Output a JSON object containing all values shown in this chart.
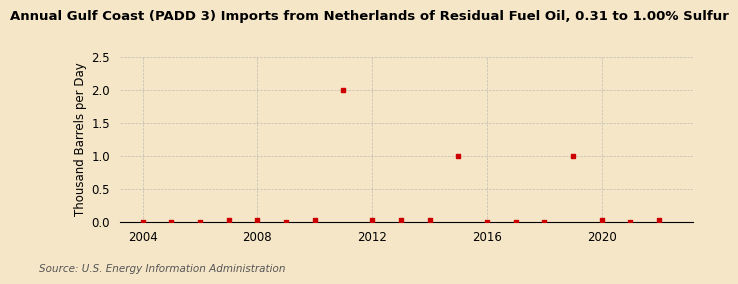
{
  "title": "Annual Gulf Coast (PADD 3) Imports from Netherlands of Residual Fuel Oil, 0.31 to 1.00% Sulfur",
  "ylabel": "Thousand Barrels per Day",
  "source": "Source: U.S. Energy Information Administration",
  "background_color": "#f5e6c8",
  "plot_background_color": "#fdf6e3",
  "data_points": [
    {
      "year": 2004,
      "value": 0.0
    },
    {
      "year": 2005,
      "value": 0.0
    },
    {
      "year": 2006,
      "value": 0.0
    },
    {
      "year": 2007,
      "value": 0.02
    },
    {
      "year": 2008,
      "value": 0.02
    },
    {
      "year": 2009,
      "value": 0.0
    },
    {
      "year": 2010,
      "value": 0.02
    },
    {
      "year": 2011,
      "value": 2.0
    },
    {
      "year": 2012,
      "value": 0.02
    },
    {
      "year": 2013,
      "value": 0.02
    },
    {
      "year": 2014,
      "value": 0.02
    },
    {
      "year": 2015,
      "value": 1.0
    },
    {
      "year": 2016,
      "value": 0.0
    },
    {
      "year": 2017,
      "value": 0.0
    },
    {
      "year": 2018,
      "value": 0.0
    },
    {
      "year": 2019,
      "value": 1.0
    },
    {
      "year": 2020,
      "value": 0.02
    },
    {
      "year": 2021,
      "value": 0.0
    },
    {
      "year": 2022,
      "value": 0.02
    }
  ],
  "marker_color": "#cc0000",
  "marker_size": 12,
  "xlim": [
    2003.2,
    2023.2
  ],
  "ylim": [
    0.0,
    2.5
  ],
  "yticks": [
    0.0,
    0.5,
    1.0,
    1.5,
    2.0,
    2.5
  ],
  "xticks": [
    2004,
    2008,
    2012,
    2016,
    2020
  ],
  "grid_color": "#aaaaaa",
  "title_fontsize": 9.5,
  "ylabel_fontsize": 8.5,
  "tick_fontsize": 8.5,
  "source_fontsize": 7.5
}
